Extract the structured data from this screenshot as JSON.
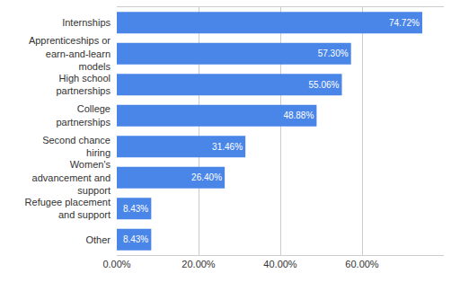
{
  "chart_data": {
    "type": "bar",
    "orientation": "horizontal",
    "categories": [
      "Internships",
      "Apprenticeships or earn-and-learn models",
      "High school partnerships",
      "College partnerships",
      "Second chance hiring",
      "Women's advancement and support",
      "Refugee placement and support",
      "Other"
    ],
    "values": [
      74.72,
      57.3,
      55.06,
      48.88,
      31.46,
      26.4,
      8.43,
      8.43
    ],
    "value_labels": [
      "74.72%",
      "57.30%",
      "55.06%",
      "48.88%",
      "31.46%",
      "26.40%",
      "8.43%",
      "8.43%"
    ],
    "color": "#4a86e8",
    "xlim": [
      0,
      80
    ],
    "xticks": [
      {
        "value": 0,
        "label": "0.00%"
      },
      {
        "value": 20,
        "label": "20.00%"
      },
      {
        "value": 40,
        "label": "40.00%"
      },
      {
        "value": 60,
        "label": "60.00%"
      }
    ],
    "grid": true,
    "data_labels": true
  }
}
